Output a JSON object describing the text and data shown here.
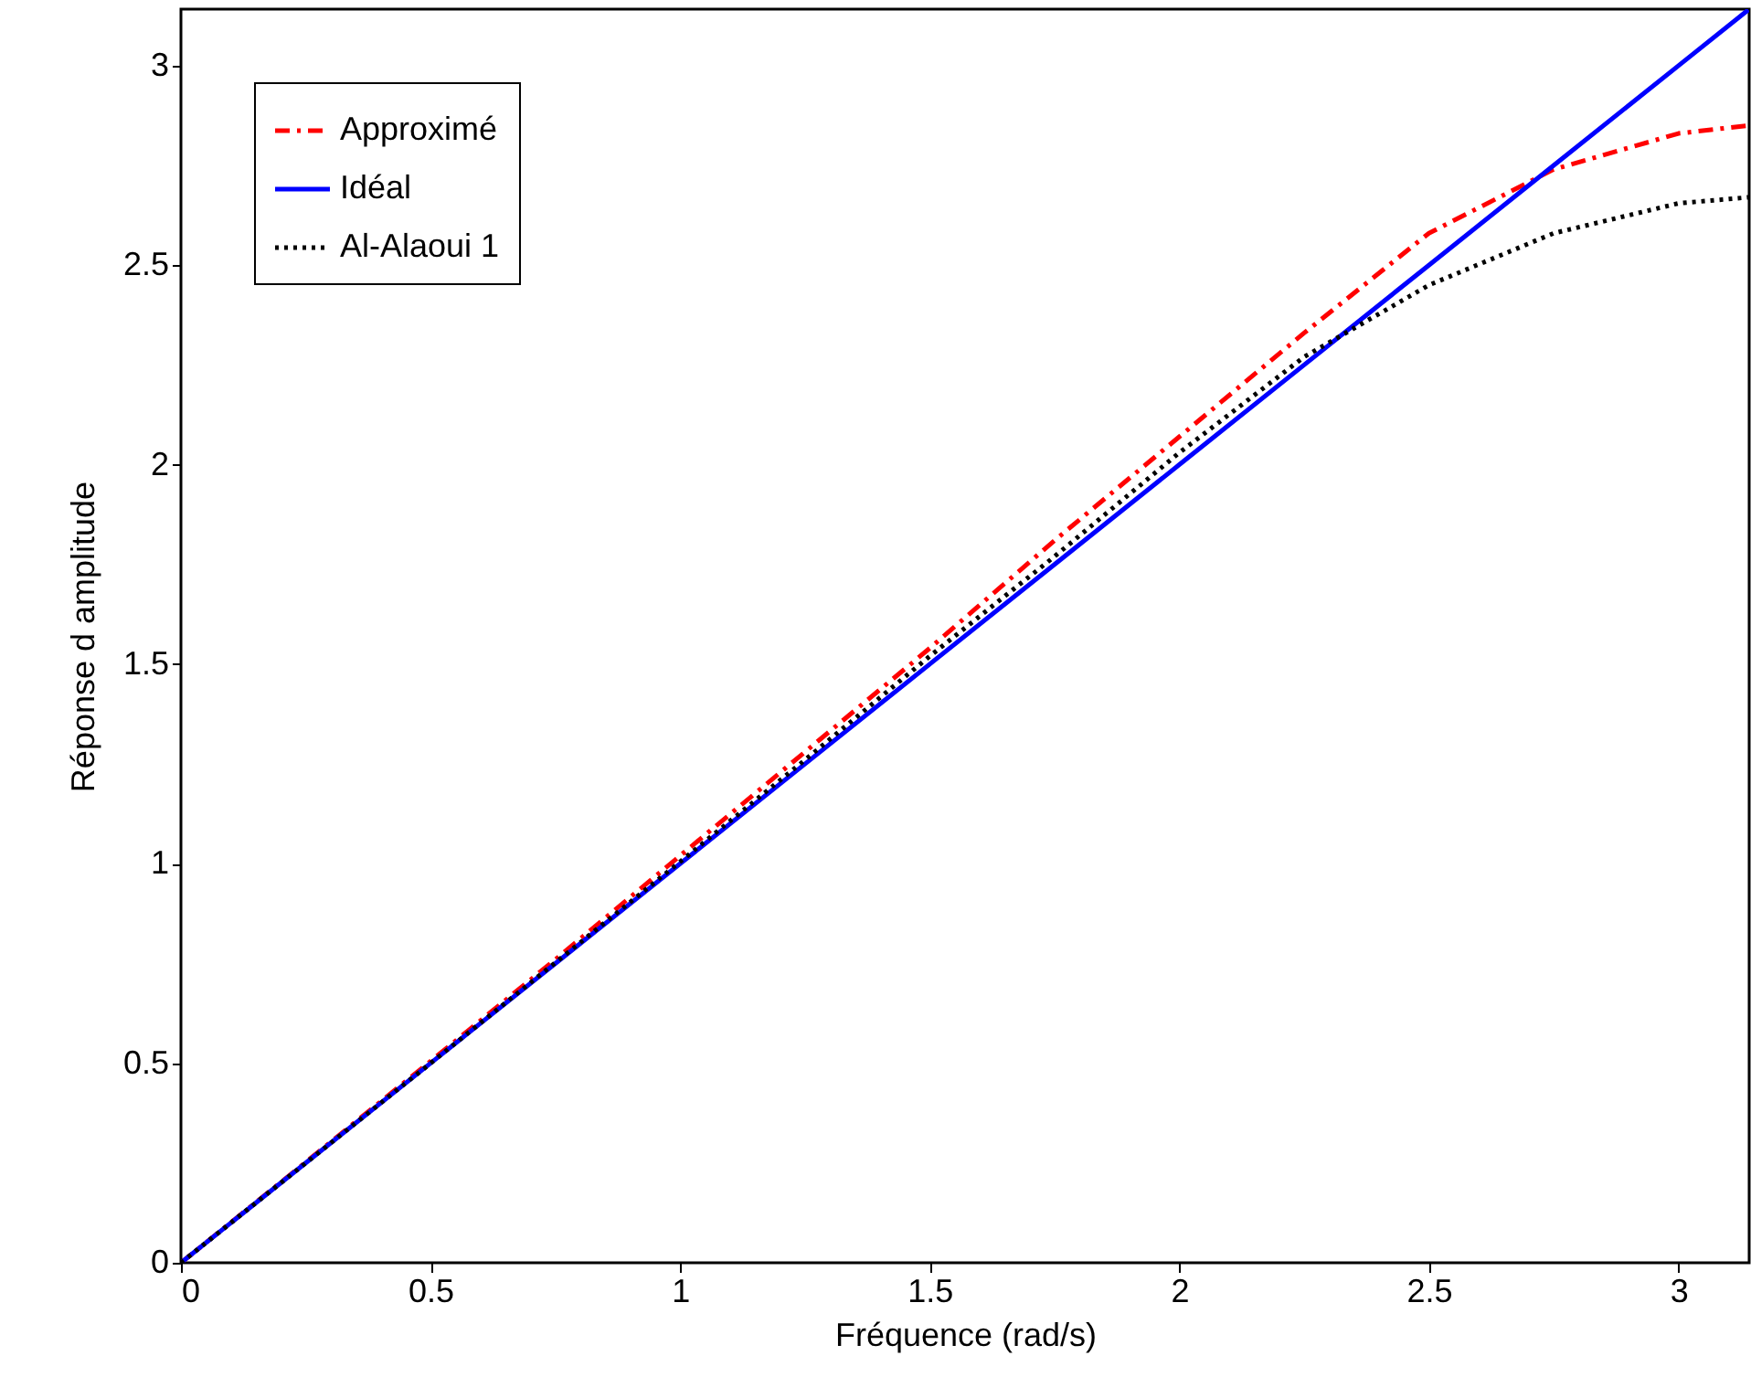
{
  "chart_data": {
    "type": "line",
    "xlabel": "Fréquence (rad/s)",
    "ylabel": "Réponse d amplitude",
    "xlim": [
      0,
      3.1416
    ],
    "ylim": [
      0,
      3.1416
    ],
    "xticks": [
      0,
      0.5,
      1,
      1.5,
      2,
      2.5,
      3
    ],
    "yticks": [
      0,
      0.5,
      1,
      1.5,
      2,
      2.5,
      3
    ],
    "legend": "top left",
    "grid": false,
    "x": [
      0,
      0.25,
      0.5,
      0.75,
      1,
      1.25,
      1.5,
      1.75,
      2,
      2.25,
      2.5,
      2.75,
      3,
      3.14
    ],
    "series": [
      {
        "name": "Approximé",
        "color": "#ff0000",
        "line_style": "dashdot",
        "values": [
          0,
          0.252,
          0.505,
          0.76,
          1.02,
          1.28,
          1.54,
          1.81,
          2.07,
          2.33,
          2.58,
          2.74,
          2.83,
          2.85
        ]
      },
      {
        "name": "Idéal",
        "color": "#0000ff",
        "line_style": "solid",
        "values": [
          0,
          0.25,
          0.5,
          0.75,
          1,
          1.25,
          1.5,
          1.75,
          2,
          2.25,
          2.5,
          2.75,
          3,
          3.14
        ]
      },
      {
        "name": "Al-Alaoui 1",
        "color": "#000000",
        "line_style": "dotted",
        "values": [
          0,
          0.25,
          0.5,
          0.752,
          1.005,
          1.26,
          1.52,
          1.77,
          2.03,
          2.27,
          2.45,
          2.58,
          2.655,
          2.67
        ]
      }
    ]
  }
}
